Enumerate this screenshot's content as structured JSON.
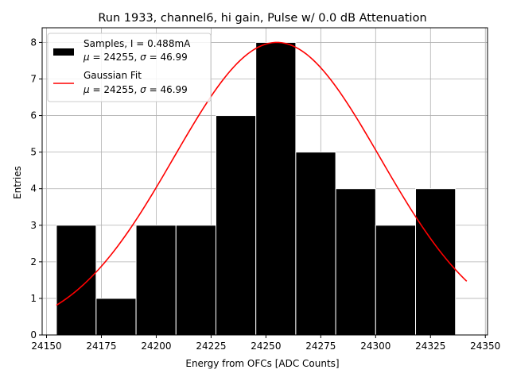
{
  "chart_data": {
    "type": "bar",
    "title": "Run 1933, channel6, hi gain, Pulse w/ 0.0 dB Attenuation",
    "xlabel": "Energy from OFCs [ADC Counts]",
    "ylabel": "Entries",
    "xlim": [
      24148,
      24351
    ],
    "ylim": [
      0,
      8.4
    ],
    "xticks": [
      24150,
      24175,
      24200,
      24225,
      24250,
      24275,
      24300,
      24325,
      24350
    ],
    "yticks": [
      0,
      1,
      2,
      3,
      4,
      5,
      6,
      7,
      8
    ],
    "grid": true,
    "legend_position": "top-left",
    "bins": [
      {
        "start": 24154.5,
        "end": 24172.6,
        "count": 3
      },
      {
        "start": 24172.6,
        "end": 24190.8,
        "count": 1
      },
      {
        "start": 24190.8,
        "end": 24209.0,
        "count": 3
      },
      {
        "start": 24209.0,
        "end": 24227.2,
        "count": 3
      },
      {
        "start": 24227.2,
        "end": 24245.4,
        "count": 6
      },
      {
        "start": 24245.4,
        "end": 24263.6,
        "count": 8
      },
      {
        "start": 24263.6,
        "end": 24281.8,
        "count": 5
      },
      {
        "start": 24281.8,
        "end": 24300.0,
        "count": 4
      },
      {
        "start": 24300.0,
        "end": 24318.2,
        "count": 3
      },
      {
        "start": 24318.2,
        "end": 24336.4,
        "count": 4
      }
    ],
    "fit": {
      "mu": 24255,
      "sigma": 46.99,
      "amplitude": 8.0,
      "x_range": [
        24154.5,
        24341.5
      ]
    },
    "series": [
      {
        "name": "Samples, I = 0.488mA",
        "detail_mu": "24255",
        "detail_sigma": "46.99",
        "color": "#000000"
      },
      {
        "name": "Gaussian Fit",
        "detail_mu": "24255",
        "detail_sigma": "46.99",
        "color": "#ff0000"
      }
    ]
  }
}
